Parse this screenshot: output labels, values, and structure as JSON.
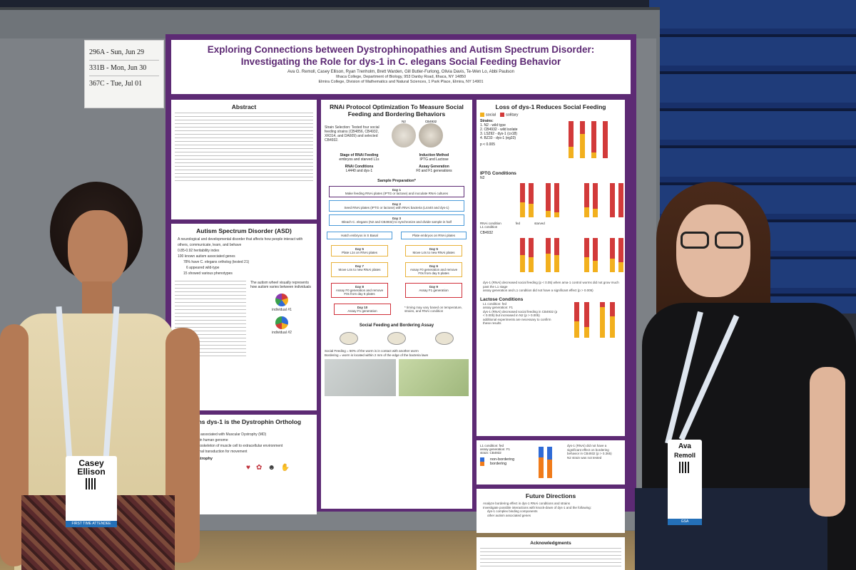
{
  "room_tag": {
    "rows": [
      "296A - Sun, Jun 29",
      "331B - Mon, Jun 30",
      "367C - Tue, Jul 01"
    ]
  },
  "poster": {
    "title_line1": "Exploring Connections between Dystrophinopathies and Autism Spectrum Disorder:",
    "title_line2": "Investigating the Role for dys-1 in C. elegans Social Feeding Behavior",
    "authors": "Ava G. Remoll, Casey Ellison, Ryan Trenholm, Brett Warden, Gill Butler-Furlong, Olivia Davis, Te-Wen Lo, Abbi Paulson",
    "affiliation_1": "Ithaca College, Department of Biology, 953 Danby Road, Ithaca, NY 14850",
    "affiliation_2": "Elmira College, Division of Mathematics and Natural Sciences, 1 Park Place, Elmira, NY 14901",
    "abstract_title": "Abstract",
    "asd_title": "Autism Spectrum Disorder (ASD)",
    "asd_points": [
      "A neurological and developmental disorder that affects how people interact with others, communicate, learn, and behave",
      "0.85-0.92 heritability index",
      "100 known autism associated genes",
      "78% have C. elegans ortholog (tested 21)",
      "6 appeared wild-type",
      "15 showed various phenotypes"
    ],
    "asd_wheel_note": "The autism wheel visually represents how autism varies between individuals",
    "individual_1": "individual #1",
    "individual_2": "individual #2",
    "dystrophin_title": "C. elegans dys-1 is the Dystrophin Ortholog",
    "dystrophin_sub": "Dystrophin",
    "dystrophin_points": [
      "X-linked gene associated with Muscular Dystrophy (MD)",
      "Largest gene in human genome",
      "Links actin cytoskeleton of muscle cell to extracellular environment",
      "Facilitates signal transduction for movement"
    ],
    "md_sub": "Muscular Dystrophy",
    "rnai_title": "RNAi Protocol Optimization To Measure Social Feeding and Bordering Behaviors",
    "strain_selection": "Strain Selection: Tested four social feeding strains (CB4856, CB4932, XR314, and DA609) and selected CB4932.",
    "n2_label": "N2",
    "cb_label": "CB4932",
    "stage_title": "Stage of RNAi Feeding",
    "stage_text": "embryos and starved L1s",
    "induction_title": "Induction Method",
    "induction_text": "IPTG and Lactose",
    "rnai_cond_title": "RNAi Conditions",
    "rnai_cond_text": "L4440 and dys-1",
    "assay_gen_title": "Assay Generation",
    "assay_gen_text": "F0 and F1 generations",
    "sample_prep": "Sample Preparation*",
    "steps": [
      {
        "day": "Day 1",
        "text": "Make feeding RNAi plates (IPTG or lactose) and inoculate RNAi cultures"
      },
      {
        "day": "Day 2",
        "text": "Seed RNAi plates (IPTG or lactose) with RNAi bacteria (L4440 and dys-1)"
      },
      {
        "day": "Day 3",
        "text": "Bleach C. elegans (N2 and CB4932) to synchronize and divide sample in half"
      },
      {
        "day": "",
        "text": "Hatch embryos in S Basal"
      },
      {
        "day": "",
        "text": "Plate embryos on RNAi plates"
      },
      {
        "day": "Day 5",
        "text": "Plate L1s on RNAi plates"
      },
      {
        "day": "Day 5",
        "text": "Move L4s to new RNAi plates"
      },
      {
        "day": "Day 7",
        "text": "Move L4s to new RNAi plates"
      },
      {
        "day": "Day 6",
        "text": "Assay F0 generation and remove F0s from day 5 plates"
      },
      {
        "day": "Day 8",
        "text": "Assay F0 generation and remove F0s from day 5 plates"
      },
      {
        "day": "Day 9",
        "text": "Assay F1 generation"
      },
      {
        "day": "Day 10",
        "text": "Assay F1 generation"
      }
    ],
    "timing_note": "* timing may vary based on temperature, strains, and RNAi condition",
    "sfb_title": "Social Feeding and Bordering Assay",
    "social_def": "Social Feeding = 50% of the worm is in contact with another worm",
    "bordering_def": "Bordering = worm is located within 2 mm of the edge of the bacteria lawn",
    "loss_title": "Loss of dys-1 Reduces Social Feeding",
    "legend_social": "social",
    "legend_solitary": "solitary",
    "strains_title": "Strains:",
    "strains": [
      "1. N2 - wild type",
      "2. CB4932 - wild isolate",
      "3. LS292 - dys-1 (cx18)",
      "4. BZ33 - dys-1 (eg33)"
    ],
    "pvalue": "p < 0.005",
    "iptg_title": "IPTG Conditions",
    "n2_small": "N2",
    "cb_small": "CB4932",
    "rnai_row": "RNAi condition",
    "l1_row": "L1 condition",
    "fed": "fed",
    "starved": "starved",
    "iptg_findings": [
      "dys-1 (RNAi) decreased social feeding (p < 0.05) when ama-1 control worms did not grow much past the L1 stage",
      "assay generation and L1 condition did not have a significant effect (p > 0.005)"
    ],
    "lactose_title": "Lactose Conditions",
    "lactose_points": [
      "L1 condition: fed",
      "assay generation: F1",
      "dys-1 (RNAi) decreased social feeding in CB4932 (p < 0.005) but increased in N2 (p > 0.005)",
      "additional experiments are necessary to confirm these results"
    ],
    "lactose_points_2": [
      "L1 condition: fed",
      "assay generation: F1",
      "strain: CB4932"
    ],
    "legend_nonbordering": "non-bordering",
    "legend_bordering": "bordering",
    "bordering_findings": [
      "dys-1 (RNAi) did not have a significant effect on bordering behavior in CB4932 (p > 0.365)",
      "N2 strain was not tested"
    ],
    "future_title": "Future Directions",
    "future_points": [
      "Analyze bordering effect in dys-1 RNAi conditions and strains",
      "Investigate possible interactions with knock-down of dys-1 and the following:",
      "dys-1 complex binding components",
      "other autism associated genes"
    ],
    "ack_title": "Acknowledgments"
  },
  "people": {
    "left_badge": {
      "name_first": "Casey",
      "name_last": "Ellison",
      "foot": "FIRST TIME ATTENDEE"
    },
    "right_badge": {
      "name_first": "Ava",
      "name_last": "Remoll",
      "foot": "GSA"
    }
  },
  "colors": {
    "poster_purple": "#5d2a74",
    "social": "#f2b01e",
    "solitary": "#d23a3a",
    "non_bordering": "#2f6bd6",
    "bordering": "#f07b1a"
  }
}
